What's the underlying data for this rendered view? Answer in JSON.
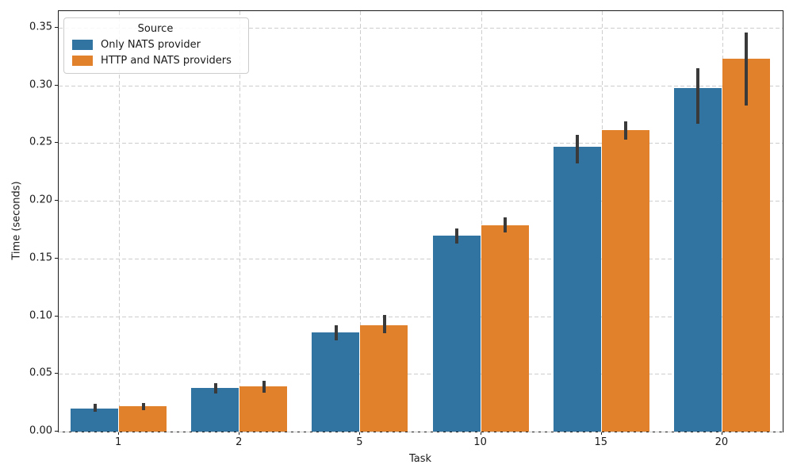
{
  "figure": {
    "background_color": "#ffffff",
    "text_color": "#1a1a1a"
  },
  "chart_data": {
    "type": "bar",
    "title": "",
    "xlabel": "Task",
    "ylabel": "Time (seconds)",
    "categories": [
      "1",
      "2",
      "5",
      "10",
      "15",
      "20"
    ],
    "series": [
      {
        "name": "Only NATS provider",
        "color": "#3274a1",
        "values": [
          0.02,
          0.038,
          0.086,
          0.17,
          0.247,
          0.298
        ],
        "ci_low": [
          0.017,
          0.033,
          0.079,
          0.163,
          0.232,
          0.267
        ],
        "ci_high": [
          0.024,
          0.042,
          0.092,
          0.176,
          0.257,
          0.315
        ]
      },
      {
        "name": "HTTP and NATS providers",
        "color": "#e1812c",
        "values": [
          0.022,
          0.039,
          0.092,
          0.179,
          0.261,
          0.323
        ],
        "ci_low": [
          0.019,
          0.034,
          0.085,
          0.173,
          0.253,
          0.283
        ],
        "ci_high": [
          0.025,
          0.044,
          0.101,
          0.186,
          0.269,
          0.346
        ]
      }
    ],
    "ylim": [
      0,
      0.35
    ],
    "yticks": [
      0,
      0.05,
      0.1,
      0.15,
      0.2,
      0.25,
      0.3,
      0.35
    ],
    "legend_title": "Source",
    "legend_position": "upper-left",
    "grid": {
      "axis": "both",
      "style": "dashed",
      "color": "#cdcdcd"
    },
    "errorbar_color": "#3a3a3a"
  }
}
